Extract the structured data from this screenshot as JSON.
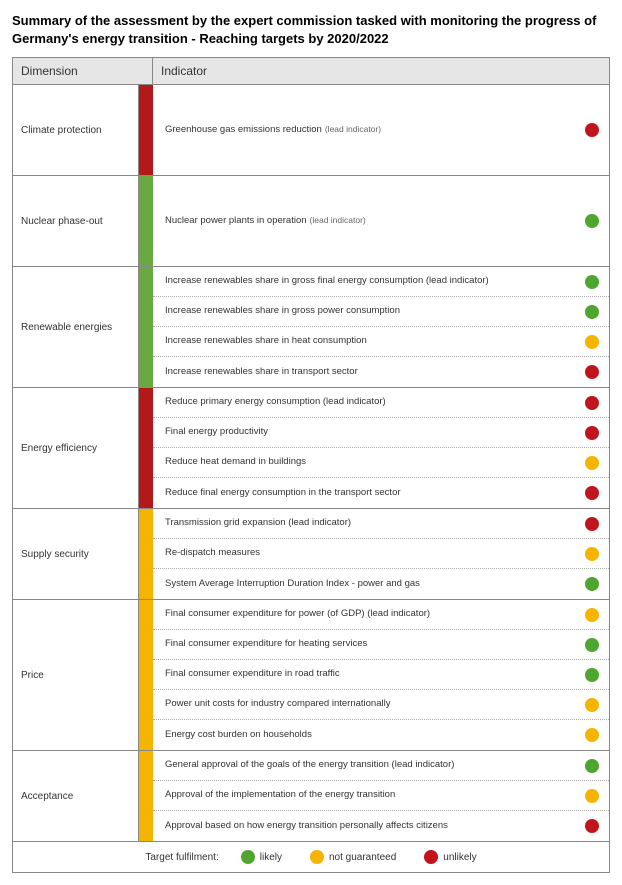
{
  "title": "Summary of the assessment by the expert commission tasked with monitoring the progress of Germany's energy transition -   Reaching targets by 2020/2022",
  "headers": {
    "dimension": "Dimension",
    "indicator": "Indicator"
  },
  "colors": {
    "green": "#6aa842",
    "yellow": "#f4b400",
    "red": "#b41919",
    "dot_green": "#4ea62e",
    "dot_yellow": "#f4b400",
    "dot_red": "#c0151c"
  },
  "legend": {
    "label": "Target fulfilment:",
    "items": [
      {
        "text": "likely",
        "color": "dot_green"
      },
      {
        "text": "not guaranteed",
        "color": "dot_yellow"
      },
      {
        "text": "unlikely",
        "color": "dot_red"
      }
    ]
  },
  "sections": [
    {
      "dimension": "Climate protection",
      "bar": "red",
      "indicators": [
        {
          "text": "Greenhouse gas emissions reduction",
          "note": "(lead indicator)",
          "status": "dot_red",
          "single": true
        }
      ]
    },
    {
      "dimension": "Nuclear phase-out",
      "bar": "green",
      "indicators": [
        {
          "text": "Nuclear power plants in operation",
          "note": "(lead indicator)",
          "status": "dot_green",
          "single": true
        }
      ]
    },
    {
      "dimension": "Renewable energies",
      "bar": "green",
      "indicators": [
        {
          "text": "Increase renewables share in gross final energy consumption (lead indicator)",
          "status": "dot_green"
        },
        {
          "text": "Increase renewables share in gross power consumption",
          "status": "dot_green"
        },
        {
          "text": "Increase renewables share in heat consumption",
          "status": "dot_yellow"
        },
        {
          "text": "Increase renewables share in transport sector",
          "status": "dot_red"
        }
      ]
    },
    {
      "dimension": "Energy efficiency",
      "bar": "red",
      "indicators": [
        {
          "text": "Reduce primary energy consumption (lead indicator)",
          "status": "dot_red"
        },
        {
          "text": "Final energy productivity",
          "status": "dot_red"
        },
        {
          "text": "Reduce heat demand in buildings",
          "status": "dot_yellow"
        },
        {
          "text": "Reduce final energy consumption in the transport sector",
          "status": "dot_red"
        }
      ]
    },
    {
      "dimension": "Supply security",
      "bar": "yellow",
      "indicators": [
        {
          "text": "Transmission grid expansion (lead indicator)",
          "status": "dot_red"
        },
        {
          "text": "Re-dispatch measures",
          "status": "dot_yellow"
        },
        {
          "text": "System Average Interruption Duration Index - power and gas",
          "status": "dot_green"
        }
      ]
    },
    {
      "dimension": "Price",
      "bar": "yellow",
      "indicators": [
        {
          "text": "Final consumer expenditure for power (of GDP) (lead indicator)",
          "status": "dot_yellow"
        },
        {
          "text": "Final consumer expenditure for heating services",
          "status": "dot_green"
        },
        {
          "text": "Final consumer expenditure in road traffic",
          "status": "dot_green"
        },
        {
          "text": "Power unit costs for industry compared internationally",
          "status": "dot_yellow"
        },
        {
          "text": "Energy cost burden on households",
          "status": "dot_yellow"
        }
      ]
    },
    {
      "dimension": "Acceptance",
      "bar": "yellow",
      "indicators": [
        {
          "text": "General approval of the goals of the energy transition (lead indicator)",
          "status": "dot_green"
        },
        {
          "text": "Approval of the implementation of the energy transition",
          "status": "dot_yellow"
        },
        {
          "text": "Approval based on how energy transition personally affects citizens",
          "status": "dot_red"
        }
      ]
    }
  ]
}
